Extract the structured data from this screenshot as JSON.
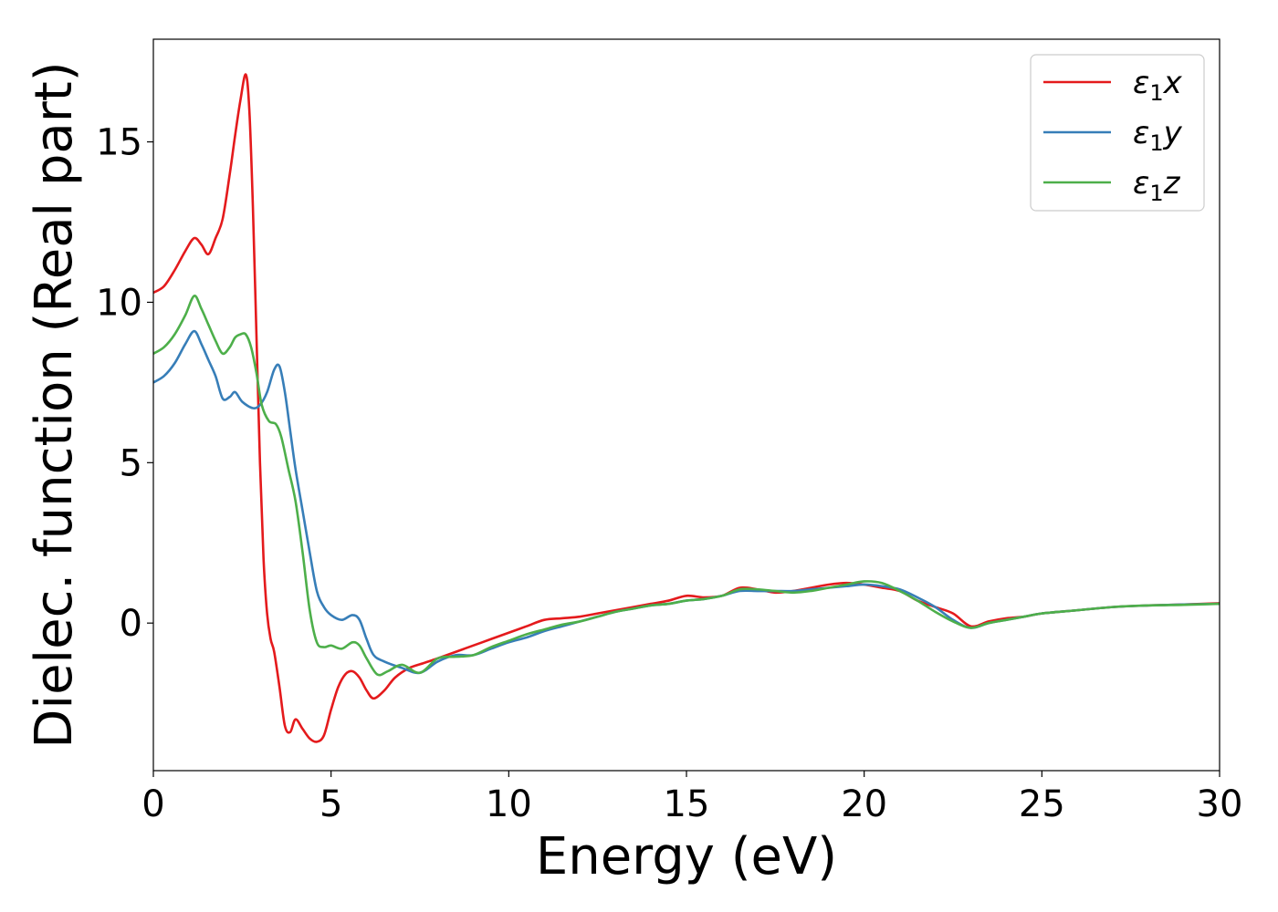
{
  "chart_data": {
    "type": "line",
    "title": "",
    "xlabel": "Energy (eV)",
    "ylabel": "Dielec. function (Real part)",
    "xlim": [
      0,
      30
    ],
    "ylim": [
      -4.6,
      18.2
    ],
    "xticks": [
      0,
      5,
      10,
      15,
      20,
      25,
      30
    ],
    "yticks": [
      0,
      5,
      10,
      15
    ],
    "grid": false,
    "legend_position": "top-right",
    "series": [
      {
        "name": "ε1x",
        "name_parts": {
          "base": "ε",
          "sub": "1",
          "tail": "x"
        },
        "color": "#e41a1c",
        "x": [
          0,
          0.3,
          0.6,
          0.9,
          1.15,
          1.35,
          1.55,
          1.75,
          1.95,
          2.15,
          2.3,
          2.45,
          2.6,
          2.7,
          2.8,
          2.9,
          3.0,
          3.1,
          3.2,
          3.3,
          3.4,
          3.55,
          3.7,
          3.85,
          4.0,
          4.2,
          4.4,
          4.6,
          4.8,
          5.0,
          5.2,
          5.4,
          5.6,
          5.8,
          6.0,
          6.2,
          6.5,
          6.8,
          7.2,
          7.6,
          8.0,
          8.5,
          9.0,
          9.5,
          10,
          10.5,
          11,
          11.5,
          12,
          12.5,
          13,
          13.5,
          14,
          14.5,
          15,
          15.5,
          16,
          16.5,
          17,
          17.5,
          18,
          18.5,
          19,
          19.5,
          20,
          20.5,
          21,
          21.5,
          22,
          22.5,
          23,
          23.5,
          24,
          24.5,
          25,
          26,
          27,
          28,
          29,
          30
        ],
        "y": [
          10.3,
          10.5,
          11.0,
          11.6,
          12.0,
          11.8,
          11.5,
          12.0,
          12.6,
          14.0,
          15.2,
          16.3,
          17.1,
          16.0,
          13.0,
          9.0,
          5.0,
          2.0,
          0.3,
          -0.5,
          -0.9,
          -2.0,
          -3.2,
          -3.4,
          -3.0,
          -3.3,
          -3.6,
          -3.7,
          -3.5,
          -2.7,
          -2.0,
          -1.6,
          -1.5,
          -1.7,
          -2.1,
          -2.35,
          -2.1,
          -1.7,
          -1.4,
          -1.25,
          -1.1,
          -0.9,
          -0.7,
          -0.5,
          -0.3,
          -0.1,
          0.1,
          0.15,
          0.2,
          0.3,
          0.4,
          0.5,
          0.6,
          0.7,
          0.85,
          0.8,
          0.85,
          1.1,
          1.05,
          0.95,
          1.0,
          1.1,
          1.2,
          1.25,
          1.2,
          1.1,
          1.0,
          0.7,
          0.5,
          0.3,
          -0.1,
          0.05,
          0.15,
          0.2,
          0.3,
          0.4,
          0.5,
          0.55,
          0.58,
          0.62
        ]
      },
      {
        "name": "ε1y",
        "name_parts": {
          "base": "ε",
          "sub": "1",
          "tail": "y"
        },
        "color": "#377eb8",
        "x": [
          0,
          0.3,
          0.6,
          0.9,
          1.15,
          1.35,
          1.55,
          1.75,
          1.95,
          2.15,
          2.3,
          2.5,
          2.8,
          3.0,
          3.2,
          3.4,
          3.55,
          3.7,
          3.85,
          4.0,
          4.2,
          4.4,
          4.6,
          4.8,
          5.0,
          5.3,
          5.6,
          5.8,
          6.0,
          6.2,
          6.5,
          7.0,
          7.5,
          8.0,
          8.5,
          9.0,
          9.5,
          10,
          10.5,
          11,
          11.5,
          12,
          12.5,
          13,
          13.5,
          14,
          14.5,
          15,
          15.5,
          16,
          16.5,
          17,
          17.5,
          18,
          18.5,
          19,
          19.5,
          20,
          20.5,
          21,
          21.5,
          22,
          22.5,
          23,
          23.5,
          24,
          24.5,
          25,
          26,
          27,
          28,
          29,
          30
        ],
        "y": [
          7.5,
          7.7,
          8.1,
          8.7,
          9.1,
          8.7,
          8.2,
          7.7,
          7.0,
          7.05,
          7.2,
          6.9,
          6.7,
          6.8,
          7.2,
          7.9,
          8.0,
          7.2,
          6.0,
          4.8,
          3.5,
          2.2,
          1.0,
          0.5,
          0.25,
          0.1,
          0.25,
          0.1,
          -0.5,
          -1.0,
          -1.2,
          -1.4,
          -1.55,
          -1.2,
          -1.0,
          -1.0,
          -0.8,
          -0.6,
          -0.45,
          -0.25,
          -0.1,
          0.05,
          0.2,
          0.35,
          0.45,
          0.55,
          0.6,
          0.7,
          0.75,
          0.85,
          1.0,
          1.0,
          1.0,
          1.0,
          1.05,
          1.1,
          1.15,
          1.2,
          1.15,
          1.05,
          0.8,
          0.5,
          0.1,
          -0.15,
          0.0,
          0.1,
          0.2,
          0.3,
          0.4,
          0.5,
          0.55,
          0.58,
          0.6
        ]
      },
      {
        "name": "ε1z",
        "name_parts": {
          "base": "ε",
          "sub": "1",
          "tail": "z"
        },
        "color": "#4daf4a",
        "x": [
          0,
          0.3,
          0.6,
          0.9,
          1.15,
          1.35,
          1.55,
          1.75,
          1.95,
          2.15,
          2.3,
          2.45,
          2.6,
          2.75,
          2.9,
          3.05,
          3.25,
          3.45,
          3.6,
          3.8,
          4.0,
          4.2,
          4.4,
          4.6,
          4.8,
          5.0,
          5.3,
          5.6,
          5.8,
          6.0,
          6.3,
          6.6,
          7.0,
          7.5,
          8.0,
          8.5,
          9.0,
          9.5,
          10,
          10.5,
          11,
          11.5,
          12,
          12.5,
          13,
          13.5,
          14,
          14.5,
          15,
          15.5,
          16,
          16.5,
          17,
          17.5,
          18,
          18.5,
          19,
          19.5,
          20,
          20.5,
          21,
          21.5,
          22,
          22.5,
          23,
          23.5,
          24,
          24.5,
          25,
          26,
          27,
          28,
          29,
          30
        ],
        "y": [
          8.4,
          8.6,
          9.0,
          9.6,
          10.2,
          9.8,
          9.3,
          8.8,
          8.4,
          8.6,
          8.9,
          9.0,
          9.0,
          8.6,
          7.8,
          6.8,
          6.3,
          6.2,
          5.8,
          4.8,
          3.8,
          2.2,
          0.4,
          -0.6,
          -0.75,
          -0.7,
          -0.8,
          -0.6,
          -0.7,
          -1.1,
          -1.6,
          -1.5,
          -1.3,
          -1.55,
          -1.1,
          -1.05,
          -1.0,
          -0.75,
          -0.55,
          -0.35,
          -0.2,
          -0.05,
          0.05,
          0.2,
          0.35,
          0.45,
          0.55,
          0.6,
          0.7,
          0.75,
          0.85,
          1.05,
          1.05,
          1.0,
          0.95,
          1.0,
          1.1,
          1.2,
          1.3,
          1.25,
          1.0,
          0.7,
          0.35,
          0.05,
          -0.15,
          0.0,
          0.1,
          0.2,
          0.3,
          0.4,
          0.5,
          0.55,
          0.57,
          0.6
        ]
      }
    ]
  }
}
